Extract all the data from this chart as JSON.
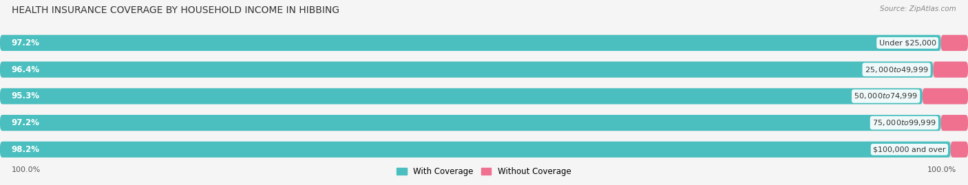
{
  "title": "HEALTH INSURANCE COVERAGE BY HOUSEHOLD INCOME IN HIBBING",
  "source": "Source: ZipAtlas.com",
  "categories": [
    "Under $25,000",
    "$25,000 to $49,999",
    "$50,000 to $74,999",
    "$75,000 to $99,999",
    "$100,000 and over"
  ],
  "with_coverage": [
    97.2,
    96.4,
    95.3,
    97.2,
    98.2
  ],
  "without_coverage": [
    2.8,
    3.6,
    4.7,
    2.8,
    1.8
  ],
  "color_with": "#4bbfbf",
  "color_with_light": "#7dd4d4",
  "color_without": "#f07090",
  "color_without_light": "#f4a0b8",
  "bg_color": "#f5f5f5",
  "bar_bg": "#e2e2e2",
  "label_color_with": "#ffffff",
  "legend_with": "With Coverage",
  "legend_without": "Without Coverage",
  "x_left_label": "100.0%",
  "x_right_label": "100.0%",
  "title_fontsize": 10,
  "source_fontsize": 7.5,
  "bar_label_fontsize": 8.5,
  "category_fontsize": 8,
  "tick_fontsize": 8
}
